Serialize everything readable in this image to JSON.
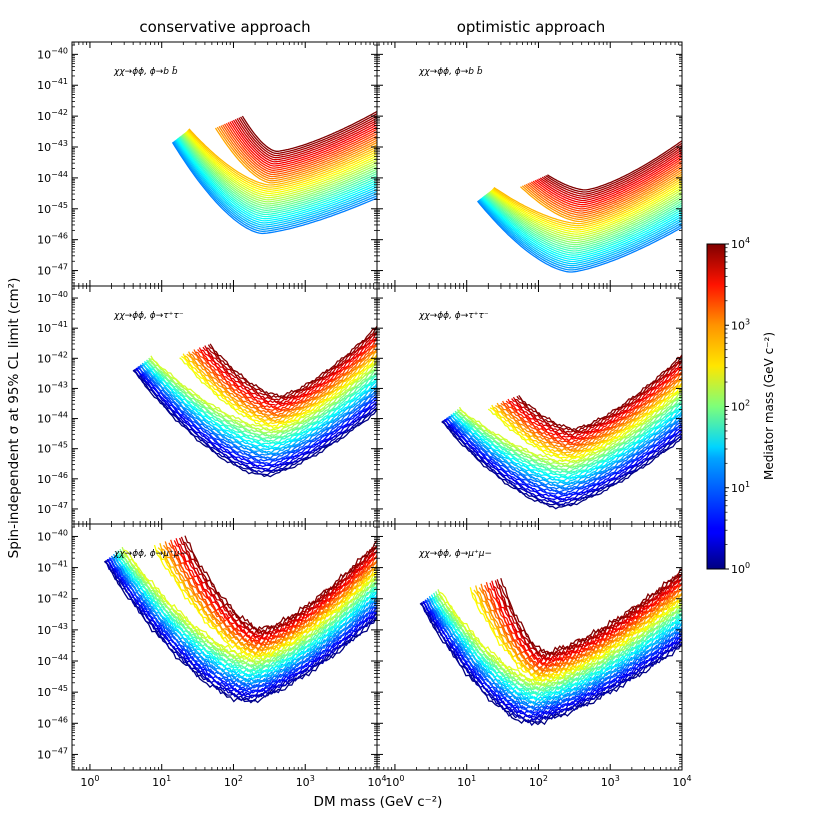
{
  "chart_data": {
    "type": "line",
    "column_titles": [
      "conservative approach",
      "optimistic approach"
    ],
    "xlabel": "DM mass (GeV c⁻²)",
    "ylabel": "Spin-independent σ at 95% CL limit (cm²)",
    "xlim_log10": [
      -0.25,
      4.0
    ],
    "ylim_log10": [
      -47.5,
      -39.6
    ],
    "x_ticks": [
      {
        "base": "10",
        "exp": "0"
      },
      {
        "base": "10",
        "exp": "1"
      },
      {
        "base": "10",
        "exp": "2"
      },
      {
        "base": "10",
        "exp": "3"
      },
      {
        "base": "10",
        "exp": "4"
      }
    ],
    "y_ticks": [
      {
        "base": "10",
        "exp": "−40"
      },
      {
        "base": "10",
        "exp": "−41"
      },
      {
        "base": "10",
        "exp": "−42"
      },
      {
        "base": "10",
        "exp": "−43"
      },
      {
        "base": "10",
        "exp": "−44"
      },
      {
        "base": "10",
        "exp": "−45"
      },
      {
        "base": "10",
        "exp": "−46"
      },
      {
        "base": "10",
        "exp": "−47"
      }
    ],
    "y_ticks_data_log10": [
      -40,
      -41,
      -42,
      -43,
      -44,
      -45,
      -46,
      -47
    ],
    "x_ticks_data_log10": [
      0,
      1,
      2,
      3,
      4
    ],
    "colorbar": {
      "label": "Mediator mass (GeV c⁻²)",
      "range_log10": [
        0,
        4
      ],
      "ticks": [
        {
          "base": "10",
          "exp": "4"
        },
        {
          "base": "10",
          "exp": "3"
        },
        {
          "base": "10",
          "exp": "2"
        },
        {
          "base": "10",
          "exp": "1"
        },
        {
          "base": "10",
          "exp": "0"
        }
      ]
    },
    "panels": [
      {
        "row": 0,
        "col": 0,
        "channel": "χχ→ϕϕ, ϕ→b b̄",
        "start_log10m": 1.15,
        "start_log10sig": -42.85,
        "min_log10m": 2.4,
        "min_log10sig": -45.8,
        "end_low_log10sig": -44.65,
        "end_high_log10sig": -41.85,
        "low_med_log10": 1.0,
        "n_curves": 40,
        "noise": 0.0
      },
      {
        "row": 0,
        "col": 1,
        "channel": "χχ→ϕϕ, ϕ→b b̄",
        "start_log10m": 1.15,
        "start_log10sig": -44.75,
        "min_log10m": 2.45,
        "min_log10sig": -47.05,
        "end_low_log10sig": -45.6,
        "end_high_log10sig": -42.8,
        "low_med_log10": 1.0,
        "n_curves": 40,
        "noise": 0.0
      },
      {
        "row": 1,
        "col": 0,
        "channel": "χχ→ϕϕ, ϕ→τ⁺τ⁻",
        "start_log10m": 0.6,
        "start_log10sig": -42.4,
        "min_log10m": 2.45,
        "min_log10sig": -45.9,
        "end_low_log10sig": -43.75,
        "end_high_log10sig": -40.95,
        "low_med_log10": 0.0,
        "n_curves": 44,
        "noise": 0.06
      },
      {
        "row": 1,
        "col": 1,
        "channel": "χχ→ϕϕ, ϕ→τ⁺τ⁻",
        "start_log10m": 0.65,
        "start_log10sig": -44.1,
        "min_log10m": 2.3,
        "min_log10sig": -46.95,
        "end_low_log10sig": -44.65,
        "end_high_log10sig": -41.9,
        "low_med_log10": 0.0,
        "n_curves": 44,
        "noise": 0.06
      },
      {
        "row": 2,
        "col": 0,
        "channel": "χχ→ϕϕ, ϕ→μ⁺μ−",
        "start_log10m": 0.2,
        "start_log10sig": -40.8,
        "min_log10m": 2.2,
        "min_log10sig": -45.3,
        "end_low_log10sig": -42.65,
        "end_high_log10sig": -40.2,
        "low_med_log10": 0.0,
        "n_curves": 46,
        "noise": 0.12
      },
      {
        "row": 2,
        "col": 1,
        "channel": "χχ→ϕϕ, ϕ→μ⁺μ−",
        "start_log10m": 0.35,
        "start_log10sig": -42.15,
        "min_log10m": 1.9,
        "min_log10sig": -46.0,
        "end_low_log10sig": -43.5,
        "end_high_log10sig": -41.1,
        "low_med_log10": 0.0,
        "n_curves": 46,
        "noise": 0.12
      }
    ]
  }
}
